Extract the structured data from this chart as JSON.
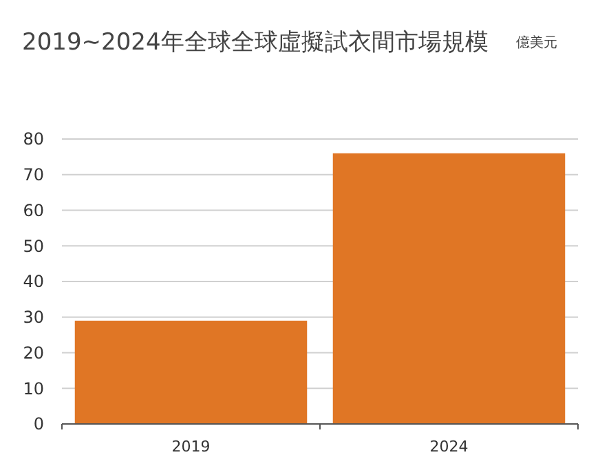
{
  "chart_data": {
    "type": "bar",
    "title": "2019~2024年全球全球虛擬試衣間市場規模",
    "annotations": [
      "億美元"
    ],
    "categories": [
      "2019",
      "2024"
    ],
    "values": [
      29,
      76
    ],
    "color": "#e07625",
    "ylim": [
      0,
      80
    ],
    "yticks": [
      0,
      10,
      20,
      30,
      40,
      50,
      60,
      70,
      80
    ],
    "grid": "y"
  }
}
